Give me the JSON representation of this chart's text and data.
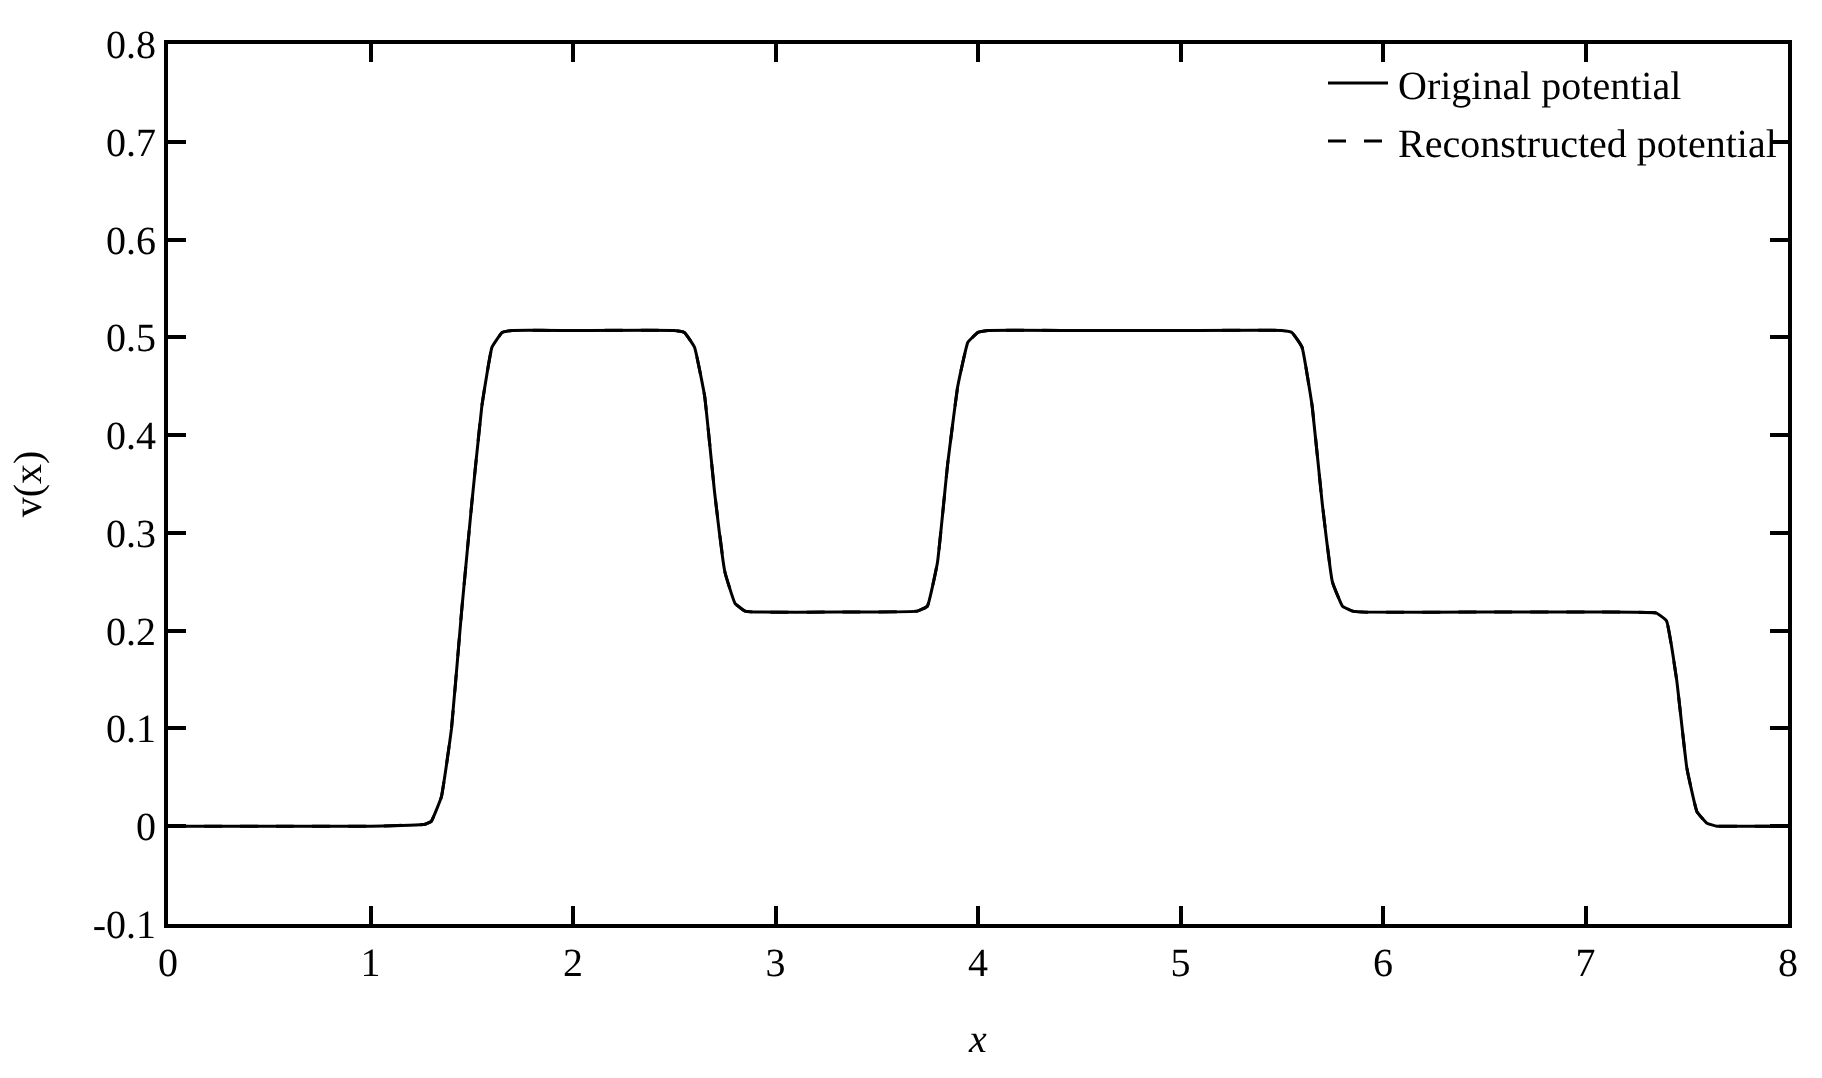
{
  "chart_data": {
    "type": "line",
    "xlabel": "x",
    "ylabel": "v(x)",
    "x": [
      0,
      0.5,
      1,
      1.27,
      1.3,
      1.35,
      1.4,
      1.45,
      1.5,
      1.55,
      1.6,
      1.65,
      1.7,
      2,
      2.5,
      2.55,
      2.6,
      2.65,
      2.7,
      2.75,
      2.8,
      2.85,
      2.9,
      3.3,
      3.7,
      3.75,
      3.8,
      3.85,
      3.9,
      3.95,
      4,
      4.05,
      4.5,
      5,
      5.5,
      5.55,
      5.6,
      5.65,
      5.7,
      5.75,
      5.8,
      5.85,
      5.9,
      6.5,
      7,
      7.35,
      7.4,
      7.45,
      7.5,
      7.55,
      7.6,
      7.65,
      7.8,
      8
    ],
    "series": [
      {
        "name": "Original potential",
        "color": "#000000",
        "line_style": "solid",
        "values": [
          0,
          0,
          0,
          0.002,
          0.005,
          0.03,
          0.1,
          0.22,
          0.33,
          0.43,
          0.49,
          0.505,
          0.507,
          0.507,
          0.507,
          0.505,
          0.49,
          0.44,
          0.34,
          0.26,
          0.228,
          0.22,
          0.219,
          0.219,
          0.22,
          0.225,
          0.27,
          0.37,
          0.45,
          0.495,
          0.505,
          0.507,
          0.507,
          0.507,
          0.507,
          0.505,
          0.49,
          0.43,
          0.33,
          0.25,
          0.225,
          0.22,
          0.219,
          0.219,
          0.219,
          0.218,
          0.21,
          0.15,
          0.06,
          0.015,
          0.003,
          0,
          0,
          0
        ]
      },
      {
        "name": "Reconstructed potential",
        "color": "#000000",
        "line_style": "dashed",
        "values": [
          0,
          0,
          0,
          0.002,
          0.005,
          0.03,
          0.1,
          0.22,
          0.33,
          0.43,
          0.49,
          0.505,
          0.507,
          0.507,
          0.507,
          0.505,
          0.49,
          0.44,
          0.34,
          0.26,
          0.228,
          0.22,
          0.219,
          0.219,
          0.22,
          0.225,
          0.27,
          0.37,
          0.45,
          0.495,
          0.505,
          0.507,
          0.507,
          0.507,
          0.507,
          0.505,
          0.49,
          0.43,
          0.33,
          0.25,
          0.225,
          0.22,
          0.219,
          0.219,
          0.219,
          0.218,
          0.21,
          0.15,
          0.06,
          0.015,
          0.003,
          0,
          0,
          0
        ]
      }
    ],
    "xlim": [
      0,
      8
    ],
    "xticks": [
      0,
      1,
      2,
      3,
      4,
      5,
      6,
      7,
      8
    ],
    "ylim": [
      -0.1,
      0.8
    ],
    "yticks": [
      {
        "value": -0.1,
        "label": "-0.1"
      },
      0,
      0.1,
      0.2,
      0.3,
      0.4,
      0.5,
      0.6,
      0.7,
      0.8
    ],
    "grid": false,
    "legend": "top right",
    "marker": "none"
  }
}
